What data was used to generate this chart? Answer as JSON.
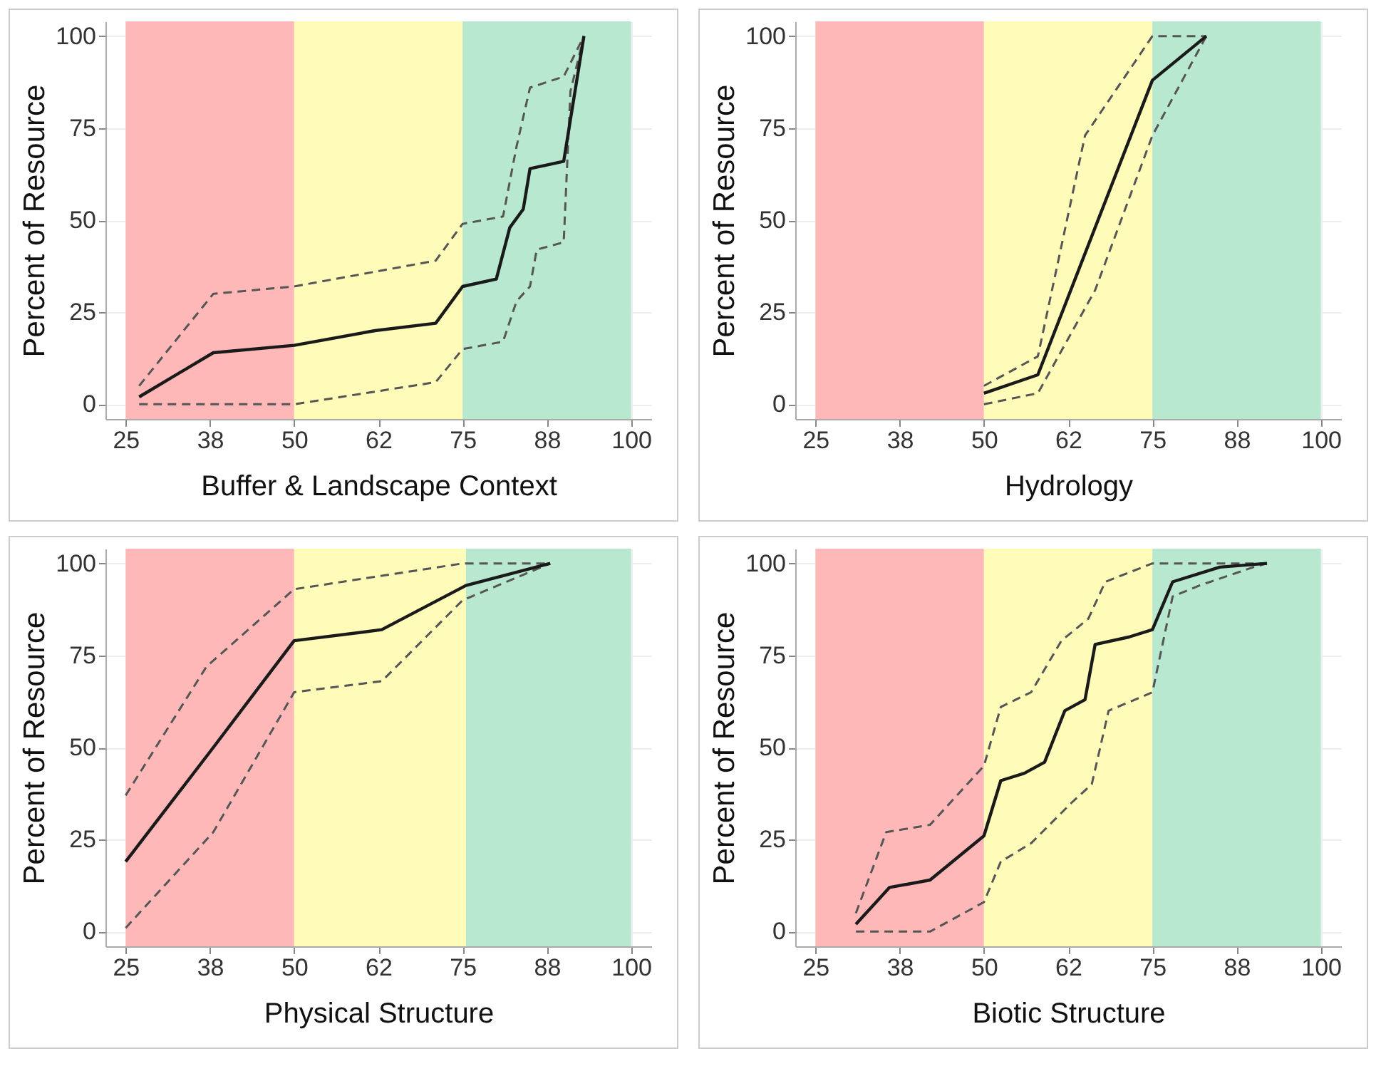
{
  "chart_data": [
    {
      "type": "line",
      "xlabel": "Buffer & Landscape Context",
      "ylabel": "Percent of Resource",
      "xlim": [
        22,
        103
      ],
      "xticks": [
        25,
        {
          "value": 37.5,
          "label": "38"
        },
        50,
        {
          "value": 62.5,
          "label": "62"
        },
        75,
        {
          "value": 87.5,
          "label": "88"
        },
        100
      ],
      "ylim": [
        -4,
        104
      ],
      "yticks": [
        0,
        25,
        50,
        75,
        100
      ],
      "grid": true,
      "bands": [
        {
          "axis": "x",
          "from": 25,
          "to": 50,
          "color": "#ffb8b8"
        },
        {
          "axis": "x",
          "from": 50,
          "to": 75,
          "color": "#fffbb8"
        },
        {
          "axis": "x",
          "from": 75,
          "to": 100,
          "color": "#b8e8d0"
        }
      ],
      "series": [
        {
          "color": "#555555",
          "line_style": "dashed",
          "x": [
            27,
            38,
            50,
            71,
            75,
            81,
            83,
            85,
            90,
            93
          ],
          "values": [
            5,
            30,
            32,
            39,
            49,
            51,
            70,
            86,
            89,
            100
          ]
        },
        {
          "color": "#555555",
          "line_style": "dashed",
          "x": [
            27,
            50,
            71,
            75,
            81,
            83,
            85,
            86,
            90,
            91,
            93
          ],
          "values": [
            0,
            0,
            6,
            15,
            17,
            28,
            32,
            42,
            44,
            85,
            100
          ]
        },
        {
          "color": "#1a1a1a",
          "line_style": "solid",
          "x": [
            27,
            38,
            50,
            62,
            71,
            75,
            80,
            82,
            84,
            85,
            90,
            93
          ],
          "values": [
            2,
            14,
            16,
            20,
            22,
            32,
            34,
            48,
            53,
            64,
            66,
            100
          ]
        }
      ]
    },
    {
      "type": "line",
      "xlabel": "Hydrology",
      "ylabel": "Percent of Resource",
      "xlim": [
        22,
        103
      ],
      "xticks": [
        25,
        {
          "value": 37.5,
          "label": "38"
        },
        50,
        {
          "value": 62.5,
          "label": "62"
        },
        75,
        {
          "value": 87.5,
          "label": "88"
        },
        100
      ],
      "ylim": [
        -4,
        104
      ],
      "yticks": [
        0,
        25,
        50,
        75,
        100
      ],
      "grid": true,
      "bands": [
        {
          "axis": "x",
          "from": 25,
          "to": 50,
          "color": "#ffb8b8"
        },
        {
          "axis": "x",
          "from": 50,
          "to": 75,
          "color": "#fffbb8"
        },
        {
          "axis": "x",
          "from": 75,
          "to": 100,
          "color": "#b8e8d0"
        }
      ],
      "series": [
        {
          "color": "#555555",
          "line_style": "dashed",
          "x": [
            50,
            58,
            65,
            75,
            83
          ],
          "values": [
            5,
            13,
            73,
            100,
            100
          ]
        },
        {
          "color": "#555555",
          "line_style": "dashed",
          "x": [
            50,
            58,
            66.5,
            75,
            83
          ],
          "values": [
            0,
            3,
            31,
            73,
            100
          ]
        },
        {
          "color": "#1a1a1a",
          "line_style": "solid",
          "x": [
            50,
            58,
            75,
            83
          ],
          "values": [
            3,
            8,
            88,
            100
          ]
        }
      ]
    },
    {
      "type": "line",
      "xlabel": "Physical Structure",
      "ylabel": "Percent of Resource",
      "xlim": [
        22,
        103
      ],
      "xticks": [
        25,
        {
          "value": 37.5,
          "label": "38"
        },
        50,
        {
          "value": 62.5,
          "label": "62"
        },
        75,
        {
          "value": 87.5,
          "label": "88"
        },
        100
      ],
      "ylim": [
        -4,
        104
      ],
      "yticks": [
        0,
        25,
        50,
        75,
        100
      ],
      "grid": true,
      "bands": [
        {
          "axis": "x",
          "from": 25,
          "to": 50,
          "color": "#ffb8b8"
        },
        {
          "axis": "x",
          "from": 50,
          "to": 75.5,
          "color": "#fffbb8"
        },
        {
          "axis": "x",
          "from": 75.5,
          "to": 100,
          "color": "#b8e8d0"
        }
      ],
      "series": [
        {
          "color": "#555555",
          "line_style": "dashed",
          "x": [
            25,
            37,
            50,
            75,
            88
          ],
          "values": [
            37,
            72,
            93,
            100,
            100
          ]
        },
        {
          "color": "#555555",
          "line_style": "dashed",
          "x": [
            25,
            38,
            50,
            63,
            75,
            88
          ],
          "values": [
            1,
            27,
            65,
            68,
            90,
            100
          ]
        },
        {
          "color": "#1a1a1a",
          "line_style": "solid",
          "x": [
            25,
            38,
            50,
            63,
            75.5,
            88
          ],
          "values": [
            19,
            50,
            79,
            82,
            94,
            100
          ]
        }
      ]
    },
    {
      "type": "line",
      "xlabel": "Biotic Structure",
      "ylabel": "Percent of Resource",
      "xlim": [
        22,
        103
      ],
      "xticks": [
        25,
        {
          "value": 37.5,
          "label": "38"
        },
        50,
        {
          "value": 62.5,
          "label": "62"
        },
        75,
        {
          "value": 87.5,
          "label": "88"
        },
        100
      ],
      "ylim": [
        -4,
        104
      ],
      "yticks": [
        0,
        25,
        50,
        75,
        100
      ],
      "grid": true,
      "bands": [
        {
          "axis": "x",
          "from": 25,
          "to": 50,
          "color": "#ffb8b8"
        },
        {
          "axis": "x",
          "from": 50,
          "to": 75,
          "color": "#fffbb8"
        },
        {
          "axis": "x",
          "from": 75,
          "to": 100,
          "color": "#b8e8d0"
        }
      ],
      "series": [
        {
          "color": "#555555",
          "line_style": "dashed",
          "x": [
            31,
            35.5,
            42,
            50,
            52.5,
            57,
            61.5,
            65.5,
            68,
            75,
            92
          ],
          "values": [
            5,
            27,
            29,
            45,
            61,
            65,
            79,
            85,
            95,
            100,
            100
          ]
        },
        {
          "color": "#555555",
          "line_style": "dashed",
          "x": [
            31,
            42,
            50,
            52.5,
            57,
            63,
            66,
            68.5,
            75,
            78,
            82,
            90,
            92
          ],
          "values": [
            0,
            0,
            8,
            19,
            24,
            35,
            40,
            60,
            65,
            91,
            94,
            99,
            100
          ]
        },
        {
          "color": "#1a1a1a",
          "line_style": "solid",
          "x": [
            31,
            36,
            42,
            50,
            52.5,
            56,
            59,
            62,
            65,
            66.5,
            71.5,
            75,
            78,
            85,
            92
          ],
          "values": [
            2,
            12,
            14,
            26,
            41,
            43,
            46,
            60,
            63,
            78,
            80,
            82,
            95,
            99,
            100
          ]
        }
      ]
    }
  ]
}
